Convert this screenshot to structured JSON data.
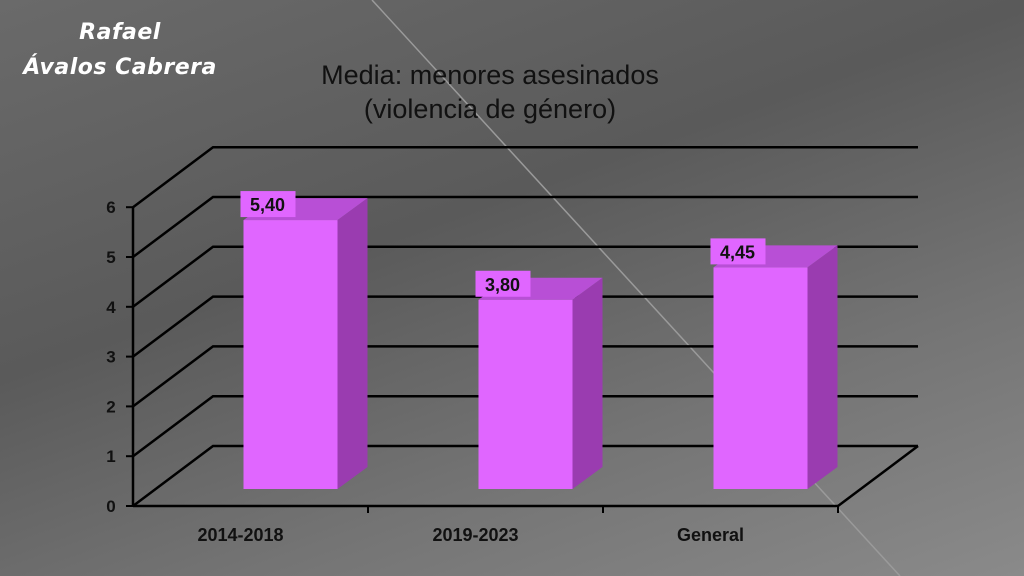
{
  "author": {
    "line1": "Rafael",
    "line2": "Ávalos Cabrera"
  },
  "chart_data": {
    "type": "bar",
    "title": "Media: menores asesinados",
    "subtitle": "(violencia de género)",
    "categories": [
      "2014-2018",
      "2019-2023",
      "General"
    ],
    "values": [
      5.4,
      3.8,
      4.45
    ],
    "data_labels": [
      "5,40",
      "3,80",
      "4,45"
    ],
    "ylim": [
      0,
      6
    ],
    "yticks": [
      "0",
      "1",
      "2",
      "3",
      "4",
      "5",
      "6"
    ],
    "xlabel": "",
    "ylabel": "",
    "grid": true,
    "bar_color": "#e066ff",
    "bar_side_color": "#9a3cb0",
    "bar_top_color": "#b84fd6"
  }
}
